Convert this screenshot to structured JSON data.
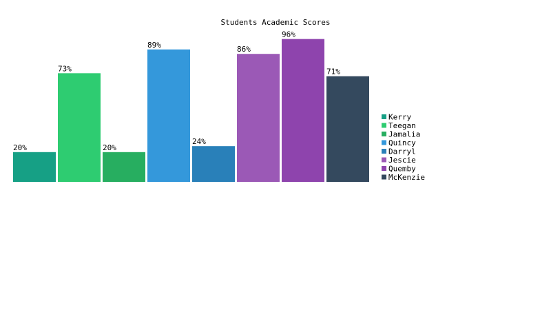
{
  "chart_data": {
    "type": "bar",
    "title": "Students Academic Scores",
    "xlabel": "",
    "ylabel": "",
    "value_suffix": "%",
    "ylim": [
      0,
      100
    ],
    "grid": false,
    "legend_position": "right",
    "categories": [
      "Kerry",
      "Teegan",
      "Jamalia",
      "Quincy",
      "Darryl",
      "Jescie",
      "Quemby",
      "McKenzie"
    ],
    "values": [
      20,
      73,
      20,
      89,
      24,
      86,
      96,
      71
    ],
    "labels": [
      "20%",
      "73%",
      "20%",
      "89%",
      "24%",
      "86%",
      "96%",
      "71%"
    ],
    "colors": [
      "#16a085",
      "#2ecc71",
      "#27ae60",
      "#3498db",
      "#2980b9",
      "#9b59b6",
      "#8e44ad",
      "#34495e"
    ]
  }
}
